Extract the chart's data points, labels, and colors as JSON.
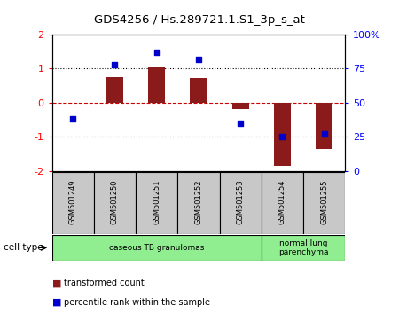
{
  "title": "GDS4256 / Hs.289721.1.S1_3p_s_at",
  "samples": [
    "GSM501249",
    "GSM501250",
    "GSM501251",
    "GSM501252",
    "GSM501253",
    "GSM501254",
    "GSM501255"
  ],
  "transformed_count": [
    0.0,
    0.75,
    1.05,
    0.72,
    -0.18,
    -1.85,
    -1.35
  ],
  "percentile_rank": [
    38,
    78,
    87,
    82,
    35,
    25,
    27
  ],
  "ylim_left": [
    -2,
    2
  ],
  "ylim_right": [
    0,
    100
  ],
  "yticks_left": [
    -2,
    -1,
    0,
    1,
    2
  ],
  "yticks_right": [
    0,
    25,
    50,
    75,
    100
  ],
  "ytick_right_labels": [
    "0",
    "25",
    "50",
    "75",
    "100%"
  ],
  "bar_color": "#8B1A1A",
  "dot_color": "#0000CD",
  "zero_line_color": "#CC0000",
  "grid_line_color": "#000000",
  "ct_groups": [
    {
      "start": 0,
      "end": 4,
      "label": "caseous TB granulomas",
      "color": "#90EE90"
    },
    {
      "start": 5,
      "end": 6,
      "label": "normal lung\nparenchyma",
      "color": "#90EE90"
    }
  ],
  "legend_items": [
    {
      "label": "transformed count",
      "color": "#8B1A1A"
    },
    {
      "label": "percentile rank within the sample",
      "color": "#0000CD"
    }
  ],
  "cell_type_label": "cell type",
  "background_color": "#ffffff",
  "plot_bg": "#ffffff",
  "sample_box_color": "#C8C8C8"
}
